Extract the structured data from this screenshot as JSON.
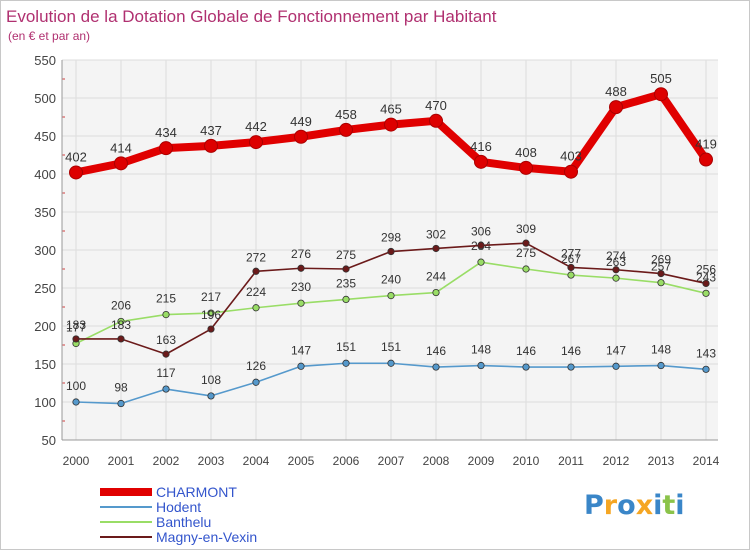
{
  "chart_data": {
    "type": "line",
    "title": "Evolution de la Dotation Globale de Fonctionnement par Habitant",
    "subtitle": "(en € et par an)",
    "xlabel": "",
    "ylabel": "",
    "ylim": [
      50,
      550
    ],
    "yticks": [
      "50",
      "100",
      "150",
      "200",
      "250",
      "300",
      "350",
      "400",
      "450",
      "500",
      "550"
    ],
    "categories": [
      "2000",
      "2001",
      "2002",
      "2003",
      "2004",
      "2005",
      "2006",
      "2007",
      "2008",
      "2009",
      "2010",
      "2011",
      "2012",
      "2013",
      "2014"
    ],
    "grid": true,
    "legend_position": "bottom-left",
    "series": [
      {
        "name": "CHARMONT",
        "color": "#e00000",
        "values": [
          402,
          414,
          434,
          437,
          442,
          449,
          458,
          465,
          470,
          416,
          408,
          403,
          488,
          505,
          419
        ],
        "labels": [
          "402",
          "414",
          "434",
          "437",
          "442",
          "449",
          "458",
          "465",
          "470",
          "416",
          "408",
          "403",
          "488",
          "505",
          "419"
        ]
      },
      {
        "name": "Hodent",
        "color": "#5599cc",
        "values": [
          100,
          98,
          117,
          108,
          126,
          147,
          151,
          151,
          146,
          148,
          146,
          146,
          147,
          148,
          143
        ],
        "labels": [
          "100",
          "98",
          "117",
          "108",
          "126",
          "147",
          "151",
          "151",
          "146",
          "148",
          "146",
          "146",
          "147",
          "148",
          "143"
        ]
      },
      {
        "name": "Banthelu",
        "color": "#99dd66",
        "values": [
          177,
          206,
          215,
          217,
          224,
          230,
          235,
          240,
          244,
          284,
          275,
          267,
          263,
          257,
          243
        ],
        "labels": [
          "177",
          "206",
          "215",
          "217",
          "224",
          "230",
          "235",
          "240",
          "244",
          "284",
          "275",
          "267",
          "263",
          "257",
          "243"
        ]
      },
      {
        "name": "Magny-en-Vexin",
        "color": "#6b1a1a",
        "values": [
          183,
          183,
          163,
          196,
          272,
          276,
          275,
          298,
          302,
          306,
          309,
          277,
          274,
          269,
          256
        ],
        "labels": [
          "183",
          "183",
          "163",
          "196",
          "272",
          "276",
          "275",
          "298",
          "302",
          "306",
          "309",
          "277",
          "274",
          "269",
          "256"
        ]
      }
    ]
  },
  "brand": {
    "name": "Proxiti",
    "letters": [
      "P",
      "r",
      "o",
      "x",
      "i",
      "t",
      "i"
    ],
    "letter_colors": [
      "#3a86c8",
      "#f5a623",
      "#3a86c8",
      "#f5a623",
      "#3a86c8",
      "#8bc34a",
      "#3a86c8"
    ]
  }
}
